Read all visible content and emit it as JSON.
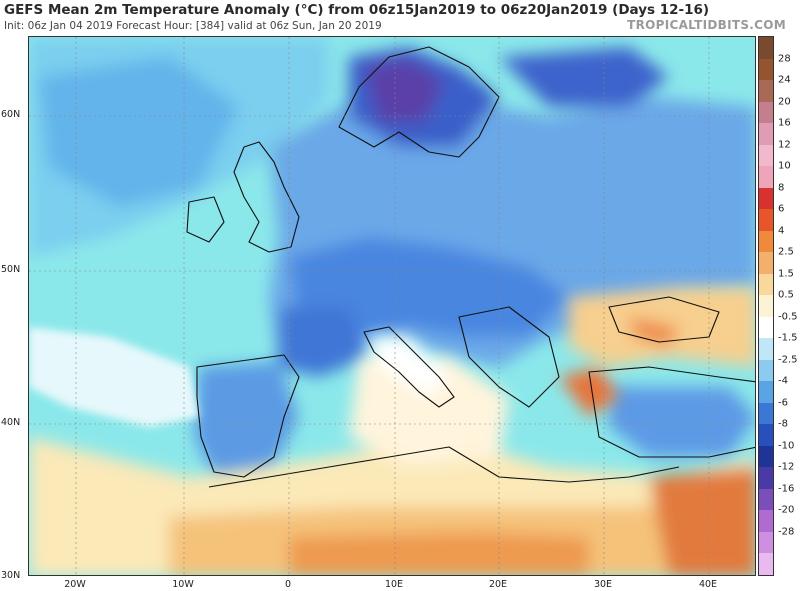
{
  "header": {
    "title": "GEFS Mean 2m Temperature Anomaly (°C) from 06z15Jan2019 to 06z20Jan2019 (Days 12-16)",
    "subtitle": "Init: 06z Jan 04 2019   Forecast Hour: [384]   valid at 06z Sun, Jan 20 2019",
    "brand": "TROPICALTIDBITS.COM"
  },
  "map": {
    "region": "Europe / Mediterranean",
    "lat_labels": [
      "60N",
      "50N",
      "40N",
      "30N"
    ],
    "lon_labels": [
      "20W",
      "10W",
      "0",
      "10E",
      "20E",
      "30E",
      "40E"
    ],
    "colors": {
      "ocean_base": "#8be8ea",
      "cold_light": "#a9d3f4",
      "cold_mid": "#5f9ee6",
      "cold_deep": "#3a70d6",
      "cold_core": "#243fb8",
      "cold_extreme": "#5a3fa8",
      "neutral": "#ffffff",
      "warm_light": "#fbe9b8",
      "warm_mid": "#f5c27a",
      "warm_deep": "#ee9a50",
      "warm_core": "#e2713a"
    }
  },
  "colorbar": {
    "labels": [
      "28",
      "24",
      "20",
      "16",
      "12",
      "10",
      "8",
      "6",
      "4",
      "2.5",
      "1.5",
      "0.5",
      "-0.5",
      "-1.5",
      "-2.5",
      "-4",
      "-6",
      "-8",
      "-10",
      "-12",
      "-16",
      "-20",
      "-28"
    ],
    "colors": [
      "#7a4a2e",
      "#94542f",
      "#a86a56",
      "#c57f8c",
      "#df9cb4",
      "#f2b8cc",
      "#f0a4b9",
      "#d8322e",
      "#e8552a",
      "#ee8a3a",
      "#f3b06a",
      "#f8d99b",
      "#fcf2d6",
      "#ffffff",
      "#bfe7f7",
      "#8ccbef",
      "#5aa3e4",
      "#3b78d6",
      "#2750bd",
      "#1e3496",
      "#4a3aa6",
      "#7b4fb9",
      "#b06bd0",
      "#cf8fe0",
      "#e9b9ef"
    ]
  }
}
